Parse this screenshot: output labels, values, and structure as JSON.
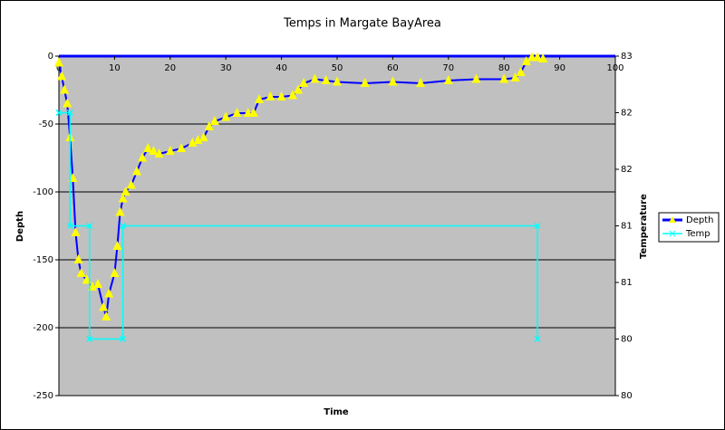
{
  "chart_data": {
    "type": "line",
    "title": "Temps in Margate BayArea",
    "x_label": "Time",
    "y_label": "Depth",
    "y2_label": "Temperature",
    "xlim": [
      0,
      100
    ],
    "xticks": [
      0,
      10,
      20,
      30,
      40,
      50,
      60,
      70,
      80,
      90,
      100
    ],
    "ylim": [
      -250,
      0
    ],
    "yticks": [
      0,
      -50,
      -100,
      -150,
      -200,
      -250
    ],
    "y2lim": [
      80,
      83
    ],
    "y2ticks": [
      80,
      {
        "value": 80.5,
        "label": "80"
      },
      81,
      {
        "value": 81.5,
        "label": "81"
      },
      82,
      {
        "value": 82.5,
        "label": "82"
      },
      83
    ],
    "grid": true,
    "legend": "right",
    "series": [
      {
        "name": "Depth",
        "color": "#0000ff",
        "marker_color": "#ffff00",
        "x": [
          0,
          0.5,
          1,
          1.5,
          2,
          2.5,
          3,
          3.5,
          4,
          5,
          6,
          7,
          8,
          8.5,
          9,
          10,
          10.5,
          11,
          11.5,
          12,
          13,
          14,
          15,
          16,
          17,
          18,
          20,
          22,
          24,
          25,
          26,
          27,
          28,
          30,
          32,
          34,
          35,
          36,
          38,
          40,
          42,
          43,
          44,
          46,
          48,
          50,
          55,
          60,
          65,
          70,
          75,
          80,
          82,
          83,
          84,
          85,
          86,
          87
        ],
        "values": [
          -5,
          -15,
          -25,
          -35,
          -60,
          -90,
          -130,
          -150,
          -160,
          -165,
          -170,
          -168,
          -185,
          -192,
          -175,
          -160,
          -140,
          -115,
          -105,
          -100,
          -95,
          -85,
          -75,
          -68,
          -70,
          -72,
          -70,
          -68,
          -64,
          -62,
          -60,
          -52,
          -48,
          -45,
          -42,
          -42,
          -42,
          -32,
          -30,
          -30,
          -29,
          -25,
          -20,
          -17,
          -18,
          -19,
          -20,
          -19,
          -20,
          -18,
          -17,
          -17,
          -16,
          -12,
          -4,
          -1,
          -1,
          -2
        ]
      },
      {
        "name": "Temp",
        "color": "#00ffff",
        "marker_color": "#00ffff",
        "axis": "y2",
        "x": [
          0,
          2,
          2,
          5.5,
          5.5,
          11.5,
          11.5,
          86,
          86
        ],
        "values": [
          82.5,
          82.5,
          81.5,
          81.5,
          80.5,
          80.5,
          81.5,
          81.5,
          80.5
        ]
      }
    ]
  }
}
